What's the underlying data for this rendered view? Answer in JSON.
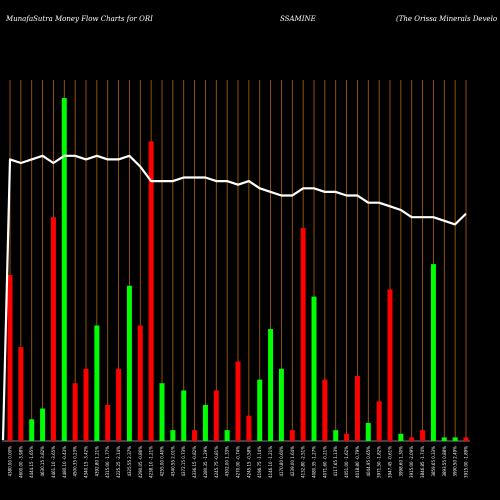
{
  "chart_data": {
    "type": "bar",
    "title_parts": [
      "MunafaSutra  Money Flow  Charts for ORI",
      "SSAMINE",
      "(The   Orissa  Minerals Develo"
    ],
    "colors": {
      "background": "#000000",
      "grid": "#b5650d",
      "line": "#ffffff",
      "up": "#00ff00",
      "down": "#ff0000",
      "text": "#ffffff"
    },
    "grid": true,
    "ylim": [
      0,
      100
    ],
    "categories": [
      "4380.00 0.00%",
      "4600.00 -3.98%",
      "4444.15 -1.65%",
      "4630.15 3.82%",
      "4461.10 -3.65%",
      "4480.10 -0.43%",
      "4500.35 0.23%",
      "4340.15 -3.42%",
      "4392.80 1.21%",
      "4315.00 -1.77%",
      "4225.25 -2.14%",
      "4325.55 2.37%",
      "4290.05 -0.86%",
      "4238.10 -1.21%",
      "4255.00 0.40%",
      "4340.55 2.01%",
      "4372.15 0.73%",
      "4336.15 -0.82%",
      "4280.35 -1.29%",
      "4245.75 -0.81%",
      "4302.00 1.33%",
      "4270.00 -0.74%",
      "4245.15 -0.58%",
      "4196.75 -1.14%",
      "4146.10 -1.21%",
      "4170.80 0.60%",
      "4239.00 1.64%",
      "4132.80 -2.51%",
      "4080.35 -1.27%",
      "4071.60 -0.21%",
      "4117.65 1.13%",
      "4051.00 -1.62%",
      "4018.80 -0.79%",
      "4044.95 0.65%",
      "3971.50 -1.82%",
      "3947.45 -0.61%",
      "3998.60 1.30%",
      "3915.00 -2.09%",
      "3846.85 -1.74%",
      "3859.65 0.33%",
      "3893.55 0.88%",
      "3990.50 2.49%",
      "3915.00 -1.89%"
    ],
    "colors_seq": [
      "down",
      "down",
      "up",
      "up",
      "down",
      "up",
      "down",
      "down",
      "up",
      "down",
      "down",
      "up",
      "down",
      "down",
      "up",
      "up",
      "up",
      "down",
      "up",
      "down",
      "up",
      "down",
      "down",
      "up",
      "up",
      "up",
      "down",
      "down",
      "up",
      "down",
      "up",
      "down",
      "down",
      "up",
      "down",
      "down",
      "up",
      "down",
      "down",
      "up",
      "up",
      "up",
      "down"
    ],
    "series": [
      {
        "values": [
          46,
          26,
          6,
          9,
          62,
          95,
          16,
          20,
          32,
          10,
          20,
          43,
          32,
          83,
          16,
          3,
          14,
          3,
          10,
          14,
          3,
          22,
          7,
          17,
          31,
          20,
          3,
          59,
          40,
          17,
          3,
          2,
          18,
          5,
          11,
          42,
          2,
          1,
          3,
          49,
          1,
          1,
          1
        ]
      },
      {
        "values": [
          78,
          77,
          78,
          79,
          77,
          79,
          79,
          78,
          79,
          78,
          78,
          79,
          76,
          72,
          72,
          72,
          73,
          73,
          73,
          72,
          72,
          71,
          72,
          70,
          69,
          68,
          68,
          70,
          70,
          69,
          69,
          68,
          68,
          66,
          66,
          65,
          64,
          62,
          62,
          62,
          61,
          60,
          63
        ]
      }
    ]
  }
}
